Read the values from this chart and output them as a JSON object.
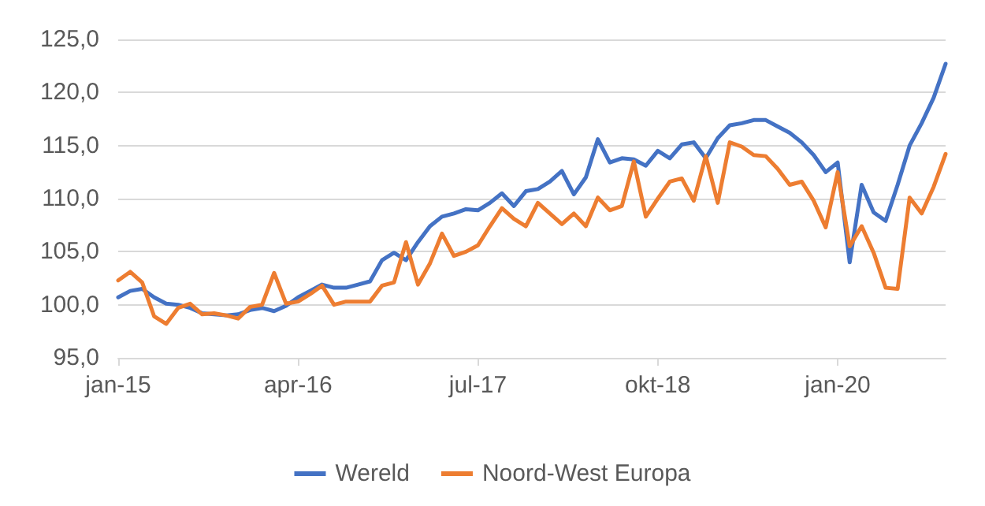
{
  "chart_data": {
    "type": "line",
    "categories": [
      "jan-15",
      null,
      null,
      null,
      null,
      null,
      null,
      null,
      null,
      null,
      null,
      null,
      null,
      null,
      null,
      "apr-16",
      null,
      null,
      null,
      null,
      null,
      null,
      null,
      null,
      null,
      null,
      null,
      null,
      null,
      null,
      "jul-17",
      null,
      null,
      null,
      null,
      null,
      null,
      null,
      null,
      null,
      null,
      null,
      null,
      null,
      null,
      "okt-18",
      null,
      null,
      null,
      null,
      null,
      null,
      null,
      null,
      null,
      null,
      null,
      null,
      null,
      null,
      "jan-20",
      null,
      null,
      null,
      null,
      null,
      null,
      null,
      null,
      null
    ],
    "series": [
      {
        "name": "Wereld",
        "color": "#4472c4",
        "values": [
          100.7,
          101.3,
          101.5,
          100.7,
          100.1,
          100.0,
          99.7,
          99.2,
          99.1,
          99.0,
          99.1,
          99.5,
          99.7,
          99.4,
          99.9,
          100.7,
          101.3,
          101.9,
          101.6,
          101.6,
          101.9,
          102.2,
          104.2,
          104.9,
          104.2,
          105.9,
          107.4,
          108.3,
          108.6,
          109.0,
          108.9,
          109.6,
          110.5,
          109.3,
          110.7,
          110.9,
          111.6,
          112.6,
          110.4,
          112.0,
          115.6,
          113.4,
          113.8,
          113.7,
          113.1,
          114.5,
          113.8,
          115.1,
          115.3,
          113.8,
          115.7,
          116.9,
          117.1,
          117.4,
          117.4,
          116.8,
          116.2,
          115.3,
          114.1,
          112.5,
          113.4,
          104.0,
          111.3,
          108.7,
          107.9,
          111.3,
          115.0,
          117.1,
          119.5,
          122.7
        ]
      },
      {
        "name": "Noord-West Europa",
        "color": "#ed7d31",
        "values": [
          102.3,
          103.1,
          102.1,
          98.9,
          98.2,
          99.7,
          100.1,
          99.1,
          99.2,
          99.0,
          98.7,
          99.8,
          100.0,
          103.0,
          100.1,
          100.3,
          101.0,
          101.8,
          100.0,
          100.3,
          100.3,
          100.3,
          101.8,
          102.1,
          105.9,
          101.9,
          103.9,
          106.7,
          104.6,
          105.0,
          105.6,
          107.4,
          109.1,
          108.1,
          107.4,
          109.6,
          108.6,
          107.6,
          108.6,
          107.4,
          110.1,
          108.9,
          109.3,
          113.5,
          108.3,
          110.0,
          111.6,
          111.9,
          109.8,
          114.0,
          109.6,
          115.3,
          114.9,
          114.1,
          114.0,
          112.8,
          111.3,
          111.6,
          109.8,
          107.3,
          112.5,
          105.5,
          107.4,
          104.9,
          101.6,
          101.5,
          110.1,
          108.6,
          111.1,
          114.2
        ]
      }
    ],
    "ylim": [
      95,
      125
    ],
    "yticks": [
      {
        "value": 95,
        "label": "95,0"
      },
      {
        "value": 100,
        "label": "100,0"
      },
      {
        "value": 105,
        "label": "105,0"
      },
      {
        "value": 110,
        "label": "110,0"
      },
      {
        "value": 115,
        "label": "115,0"
      },
      {
        "value": 120,
        "label": "120,0"
      },
      {
        "value": 125,
        "label": "125,0"
      }
    ],
    "grid": "y",
    "legend": "bottom",
    "marker": "none",
    "line_style": "solid"
  }
}
